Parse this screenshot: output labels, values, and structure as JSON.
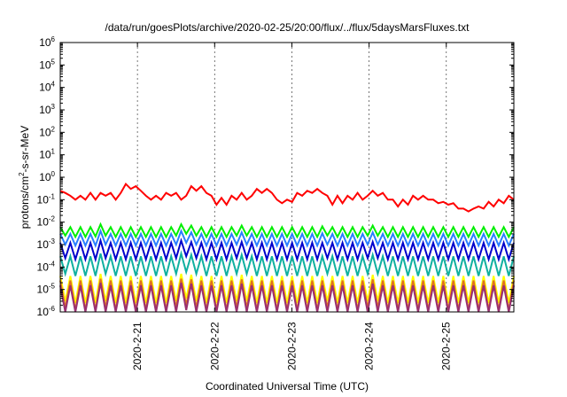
{
  "chart_data": {
    "type": "line",
    "title": "/data/run/goesPlots/archive/2020-02-25/20:00/flux/../flux/5daysMarsFluxes.txt",
    "xlabel": "Coordinated Universal Time (UTC)",
    "ylabel": "protons/cm²-s-sr-MeV",
    "ylabel_parts": {
      "pre": "protons/cm",
      "sup": "2",
      "post": "-s-sr-MeV"
    },
    "y_scale": "log",
    "ylim": [
      1e-06,
      1000000.0
    ],
    "y_ticks": [
      {
        "base": "10",
        "exp": "-6"
      },
      {
        "base": "10",
        "exp": "-5"
      },
      {
        "base": "10",
        "exp": "-4"
      },
      {
        "base": "10",
        "exp": "-3"
      },
      {
        "base": "10",
        "exp": "-2"
      },
      {
        "base": "10",
        "exp": "-1"
      },
      {
        "base": "10",
        "exp": "0"
      },
      {
        "base": "10",
        "exp": "1"
      },
      {
        "base": "10",
        "exp": "2"
      },
      {
        "base": "10",
        "exp": "3"
      },
      {
        "base": "10",
        "exp": "4"
      },
      {
        "base": "10",
        "exp": "5"
      },
      {
        "base": "10",
        "exp": "6"
      }
    ],
    "x_range_days": [
      "2020-02-20T00:00",
      "2020-02-25T21:00"
    ],
    "x_ticks": [
      {
        "label": "2020-2-21",
        "date": "2020-02-21T00:00"
      },
      {
        "label": "2020-2-22",
        "date": "2020-02-22T00:00"
      },
      {
        "label": "2020-2-23",
        "date": "2020-02-23T00:00"
      },
      {
        "label": "2020-2-24",
        "date": "2020-02-24T00:00"
      },
      {
        "label": "2020-2-25",
        "date": "2020-02-25T00:00"
      }
    ],
    "grid": "vertical dashed at day ticks",
    "legend": "none",
    "series": [
      {
        "color": "#ff0000",
        "values": [
          0.25,
          0.2,
          0.15,
          0.1,
          0.15,
          0.1,
          0.2,
          0.1,
          0.2,
          0.15,
          0.2,
          0.1,
          0.2,
          0.5,
          0.3,
          0.4,
          0.25,
          0.15,
          0.1,
          0.15,
          0.1,
          0.2,
          0.15,
          0.2,
          0.1,
          0.15,
          0.4,
          0.25,
          0.4,
          0.2,
          0.15,
          0.06,
          0.12,
          0.06,
          0.15,
          0.1,
          0.2,
          0.1,
          0.15,
          0.3,
          0.2,
          0.3,
          0.2,
          0.1,
          0.07,
          0.1,
          0.08,
          0.2,
          0.15,
          0.25,
          0.2,
          0.3,
          0.2,
          0.15,
          0.06,
          0.15,
          0.07,
          0.15,
          0.1,
          0.2,
          0.1,
          0.15,
          0.25,
          0.15,
          0.2,
          0.1,
          0.1,
          0.05,
          0.1,
          0.06,
          0.15,
          0.1,
          0.15,
          0.1,
          0.1,
          0.07,
          0.08,
          0.06,
          0.07,
          0.04,
          0.04,
          0.03,
          0.04,
          0.05,
          0.04,
          0.08,
          0.05,
          0.1,
          0.07,
          0.15,
          0.1
        ]
      },
      {
        "color": "#00ee00",
        "values": [
          0.006,
          0.0025,
          0.006,
          0.0022,
          0.006,
          0.0022,
          0.006,
          0.0023,
          0.008,
          0.0025,
          0.006,
          0.0022,
          0.006,
          0.0022,
          0.006,
          0.0022,
          0.006,
          0.0022,
          0.006,
          0.0022,
          0.006,
          0.0022,
          0.006,
          0.0025,
          0.008,
          0.003,
          0.007,
          0.0025,
          0.006,
          0.0022,
          0.006,
          0.0022,
          0.006,
          0.0022,
          0.006,
          0.0025,
          0.007,
          0.0025,
          0.006,
          0.0022,
          0.006,
          0.0022,
          0.006,
          0.0022,
          0.006,
          0.0022,
          0.006,
          0.0022,
          0.006,
          0.0022,
          0.006,
          0.0022,
          0.0065,
          0.0025,
          0.006,
          0.0022,
          0.006,
          0.0022,
          0.006,
          0.0022,
          0.006,
          0.0025,
          0.007,
          0.0025,
          0.006,
          0.0022,
          0.006,
          0.0022,
          0.006,
          0.0022,
          0.006,
          0.0022,
          0.006,
          0.0022,
          0.006,
          0.0022,
          0.006,
          0.0022,
          0.006,
          0.0022,
          0.006,
          0.0022,
          0.006,
          0.0022,
          0.006,
          0.0022,
          0.006,
          0.0022,
          0.006,
          0.0022,
          0.006
        ]
      },
      {
        "color": "#2a7fff",
        "values": [
          0.003,
          0.001,
          0.003,
          0.0009,
          0.003,
          0.0009,
          0.003,
          0.0009,
          0.004,
          0.001,
          0.003,
          0.0009,
          0.003,
          0.0009,
          0.003,
          0.0009,
          0.003,
          0.0009,
          0.003,
          0.0009,
          0.003,
          0.0009,
          0.003,
          0.001,
          0.004,
          0.0012,
          0.0035,
          0.001,
          0.003,
          0.0009,
          0.003,
          0.0009,
          0.003,
          0.0009,
          0.003,
          0.001,
          0.0035,
          0.001,
          0.003,
          0.0009,
          0.003,
          0.0009,
          0.003,
          0.0009,
          0.003,
          0.0009,
          0.003,
          0.0009,
          0.003,
          0.0009,
          0.003,
          0.0009,
          0.0032,
          0.001,
          0.003,
          0.0009,
          0.003,
          0.0009,
          0.003,
          0.0009,
          0.003,
          0.001,
          0.0035,
          0.001,
          0.003,
          0.0009,
          0.003,
          0.0009,
          0.003,
          0.0009,
          0.003,
          0.0009,
          0.003,
          0.0009,
          0.003,
          0.0009,
          0.003,
          0.0009,
          0.003,
          0.0009,
          0.003,
          0.0009,
          0.003,
          0.0009,
          0.003,
          0.0009,
          0.003,
          0.0009,
          0.003,
          0.0009,
          0.003
        ]
      },
      {
        "color": "#0000cc",
        "values": [
          0.0012,
          0.00025,
          0.0012,
          0.00022,
          0.0012,
          0.00022,
          0.0012,
          0.00022,
          0.0015,
          0.00025,
          0.0012,
          0.00022,
          0.0012,
          0.00022,
          0.0012,
          0.00022,
          0.0012,
          0.00022,
          0.0012,
          0.00022,
          0.0012,
          0.00022,
          0.0012,
          0.00025,
          0.0015,
          0.0003,
          0.0013,
          0.00025,
          0.0012,
          0.00022,
          0.0012,
          0.00022,
          0.0012,
          0.00022,
          0.0012,
          0.00025,
          0.0013,
          0.00025,
          0.0012,
          0.00022,
          0.0012,
          0.00022,
          0.0012,
          0.00022,
          0.0012,
          0.00022,
          0.0012,
          0.00022,
          0.0012,
          0.00022,
          0.0012,
          0.00022,
          0.0012,
          0.00025,
          0.0012,
          0.00022,
          0.0012,
          0.00022,
          0.0012,
          0.00022,
          0.0012,
          0.00025,
          0.0013,
          0.00025,
          0.0012,
          0.00022,
          0.0012,
          0.00022,
          0.0012,
          0.00022,
          0.0012,
          0.00022,
          0.0012,
          0.00022,
          0.0012,
          0.00022,
          0.0012,
          0.00022,
          0.0012,
          0.00022,
          0.0012,
          0.00022,
          0.0012,
          0.00022,
          0.0012,
          0.00022,
          0.0012,
          0.00022,
          0.0012,
          0.00022,
          0.0012
        ]
      },
      {
        "color": "#10b0a0",
        "values": [
          0.0003,
          5e-05,
          0.0003,
          4e-05,
          0.0003,
          4e-05,
          0.0003,
          4e-05,
          0.0004,
          5e-05,
          0.0003,
          4e-05,
          0.0003,
          4e-05,
          0.0003,
          4e-05,
          0.0003,
          4e-05,
          0.0003,
          4e-05,
          0.0003,
          4e-05,
          0.0003,
          5e-05,
          0.0004,
          6e-05,
          0.00035,
          5e-05,
          0.0003,
          4e-05,
          0.0003,
          4e-05,
          0.0003,
          4e-05,
          0.0003,
          5e-05,
          0.00035,
          5e-05,
          0.0003,
          4e-05,
          0.0003,
          4e-05,
          0.0003,
          4e-05,
          0.0003,
          4e-05,
          0.0003,
          4e-05,
          0.0003,
          4e-05,
          0.0003,
          4e-05,
          0.0003,
          5e-05,
          0.0003,
          4e-05,
          0.0003,
          4e-05,
          0.0003,
          4e-05,
          0.0003,
          5e-05,
          0.00035,
          5e-05,
          0.0003,
          4e-05,
          0.0003,
          4e-05,
          0.0003,
          4e-05,
          0.0003,
          4e-05,
          0.0003,
          4e-05,
          0.0003,
          4e-05,
          0.0003,
          4e-05,
          0.0003,
          4e-05,
          0.0003,
          4e-05,
          0.0003,
          4e-05,
          0.0003,
          4e-05,
          0.0003,
          4e-05,
          0.0003,
          4e-05,
          0.0003
        ]
      },
      {
        "color": "#ffff00",
        "values": [
          4e-05,
          3e-06,
          4e-05,
          2.5e-06,
          4e-05,
          2.5e-06,
          4e-05,
          2.5e-06,
          5e-05,
          3e-06,
          4e-05,
          2.5e-06,
          4e-05,
          2.5e-06,
          4e-05,
          2.5e-06,
          4e-05,
          2.5e-06,
          4e-05,
          2.5e-06,
          4e-05,
          2.5e-06,
          4e-05,
          3e-06,
          5e-05,
          4e-06,
          4.5e-05,
          3e-06,
          4e-05,
          2.5e-06,
          4e-05,
          2.5e-06,
          4e-05,
          2.5e-06,
          4e-05,
          3e-06,
          4.5e-05,
          3e-06,
          4e-05,
          2.5e-06,
          4e-05,
          2.5e-06,
          4e-05,
          2.5e-06,
          4e-05,
          2.5e-06,
          4e-05,
          2.5e-06,
          4e-05,
          2.5e-06,
          4e-05,
          2.5e-06,
          4e-05,
          3e-06,
          4e-05,
          2.5e-06,
          4e-05,
          2.5e-06,
          4e-05,
          2.5e-06,
          4e-05,
          3e-06,
          4.5e-05,
          3e-06,
          4e-05,
          2.5e-06,
          4e-05,
          2.5e-06,
          4e-05,
          2.5e-06,
          4e-05,
          2.5e-06,
          4e-05,
          2.5e-06,
          4e-05,
          2.5e-06,
          4e-05,
          2.5e-06,
          4e-05,
          2.5e-06,
          4e-05,
          2.5e-06,
          4e-05,
          2.5e-06,
          4e-05,
          2.5e-06,
          4e-05,
          2.5e-06,
          4e-05,
          2.5e-06,
          4e-05
        ]
      },
      {
        "color": "#e07020",
        "values": [
          2.5e-05,
          1.5e-06,
          2.5e-05,
          1.2e-06,
          2.5e-05,
          1.2e-06,
          2.5e-05,
          1.2e-06,
          3e-05,
          1.5e-06,
          2.5e-05,
          1.2e-06,
          2.5e-05,
          1.2e-06,
          2.5e-05,
          1.2e-06,
          2.5e-05,
          1.2e-06,
          2.5e-05,
          1.2e-06,
          2.5e-05,
          1.2e-06,
          2.5e-05,
          1.5e-06,
          3e-05,
          2e-06,
          2.8e-05,
          1.5e-06,
          2.5e-05,
          1.2e-06,
          2.5e-05,
          1.2e-06,
          2.5e-05,
          1.2e-06,
          2.5e-05,
          1.5e-06,
          2.8e-05,
          1.5e-06,
          2.5e-05,
          1.2e-06,
          2.5e-05,
          1.2e-06,
          2.5e-05,
          1.2e-06,
          2.5e-05,
          1.2e-06,
          2.5e-05,
          1.2e-06,
          2.5e-05,
          1.2e-06,
          2.5e-05,
          1.2e-06,
          2.5e-05,
          1.5e-06,
          2.5e-05,
          1.2e-06,
          2.5e-05,
          1.2e-06,
          2.5e-05,
          1.2e-06,
          2.5e-05,
          1.5e-06,
          2.8e-05,
          1.5e-06,
          2.5e-05,
          1.2e-06,
          2.5e-05,
          1.2e-06,
          2.5e-05,
          1.2e-06,
          2.5e-05,
          1.2e-06,
          2.5e-05,
          1.2e-06,
          2.5e-05,
          1.2e-06,
          2.5e-05,
          1.2e-06,
          2.5e-05,
          1.2e-06,
          2.5e-05,
          1.2e-06,
          2.5e-05,
          1.2e-06,
          2.5e-05,
          1.2e-06,
          2.5e-05,
          1.2e-06,
          2.5e-05,
          1.2e-06,
          2.5e-05
        ]
      },
      {
        "color": "#9a3070",
        "values": [
          1.5e-05,
          1e-06,
          1.5e-05,
          1e-06,
          1.5e-05,
          1e-06,
          1.5e-05,
          1e-06,
          2e-05,
          1e-06,
          1.5e-05,
          1e-06,
          1.5e-05,
          1e-06,
          1.5e-05,
          1e-06,
          1.5e-05,
          1e-06,
          1.5e-05,
          1e-06,
          1.5e-05,
          1e-06,
          1.5e-05,
          1e-06,
          2e-05,
          1.2e-06,
          1.8e-05,
          1e-06,
          1.5e-05,
          1e-06,
          1.5e-05,
          1e-06,
          1.5e-05,
          1e-06,
          1.5e-05,
          1e-06,
          1.8e-05,
          1e-06,
          1.5e-05,
          1e-06,
          1.5e-05,
          1e-06,
          1.5e-05,
          1e-06,
          1.5e-05,
          1e-06,
          1.5e-05,
          1e-06,
          1.5e-05,
          1e-06,
          1.5e-05,
          1e-06,
          1.5e-05,
          1e-06,
          1.5e-05,
          1e-06,
          1.5e-05,
          1e-06,
          1.5e-05,
          1e-06,
          1.5e-05,
          1e-06,
          1.8e-05,
          1e-06,
          1.5e-05,
          1e-06,
          1.5e-05,
          1e-06,
          1.5e-05,
          1e-06,
          1.5e-05,
          1e-06,
          1.5e-05,
          1e-06,
          1.5e-05,
          1e-06,
          1.5e-05,
          1e-06,
          1.5e-05,
          1e-06,
          1.5e-05,
          1e-06,
          1.5e-05,
          1e-06,
          1.5e-05,
          1e-06,
          1.5e-05,
          1e-06,
          1.5e-05,
          1e-06,
          1.5e-05
        ]
      }
    ]
  }
}
